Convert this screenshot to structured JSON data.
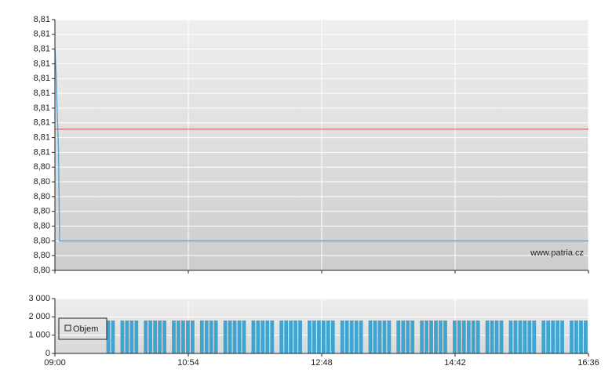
{
  "chart_data": [
    {
      "type": "line",
      "x": [
        "09:00",
        "09:01",
        "09:02",
        "09:03",
        "09:04",
        "16:36"
      ],
      "values": [
        8.8105,
        8.8093,
        8.8074,
        8.8058,
        8.8014,
        8.8014
      ],
      "color": "#5aaad8",
      "reference": {
        "value": 8.8067,
        "color": "#e04040"
      },
      "ylim": [
        8.8,
        8.8119
      ],
      "yticks": [
        {
          "value": 8.8,
          "label": "8,80"
        },
        {
          "value": 8.8007,
          "label": "8,80"
        },
        {
          "value": 8.8014,
          "label": "8,80"
        },
        {
          "value": 8.8021,
          "label": "8,80"
        },
        {
          "value": 8.8028,
          "label": "8,80"
        },
        {
          "value": 8.8035,
          "label": "8,80"
        },
        {
          "value": 8.8042,
          "label": "8,80"
        },
        {
          "value": 8.8049,
          "label": "8,80"
        },
        {
          "value": 8.8056,
          "label": "8,81"
        },
        {
          "value": 8.8063,
          "label": "8,81"
        },
        {
          "value": 8.807,
          "label": "8,81"
        },
        {
          "value": 8.8077,
          "label": "8,81"
        },
        {
          "value": 8.8084,
          "label": "8,81"
        },
        {
          "value": 8.8091,
          "label": "8,81"
        },
        {
          "value": 8.8098,
          "label": "8,81"
        },
        {
          "value": 8.8105,
          "label": "8,81"
        },
        {
          "value": 8.8112,
          "label": "8,81"
        },
        {
          "value": 8.8119,
          "label": "8,81"
        }
      ],
      "watermark": "www.patria.cz",
      "grid": true
    },
    {
      "type": "bar",
      "x": [
        "09:44",
        "09:48",
        "09:52",
        "09:56",
        "10:00",
        "10:04",
        "10:08",
        "10:12",
        "10:16",
        "10:20",
        "10:24",
        "10:28",
        "10:32",
        "10:36",
        "10:40",
        "10:44",
        "10:48",
        "10:52",
        "10:56",
        "11:00",
        "11:04",
        "11:08",
        "11:12",
        "11:16",
        "11:20",
        "11:24",
        "11:28",
        "11:32",
        "11:36",
        "11:40",
        "11:44",
        "11:48",
        "11:52",
        "11:56",
        "12:00",
        "12:04",
        "12:08",
        "12:12",
        "12:16",
        "12:20",
        "12:24",
        "12:28",
        "12:32",
        "12:36",
        "12:40",
        "12:44",
        "12:48",
        "12:52",
        "12:56",
        "13:00",
        "13:04",
        "13:08",
        "13:12",
        "13:16",
        "13:20",
        "13:24",
        "13:28",
        "13:32",
        "13:36",
        "13:40",
        "13:44",
        "13:48",
        "13:52",
        "13:56",
        "14:00",
        "14:04",
        "14:08",
        "14:12",
        "14:16",
        "14:20",
        "14:24",
        "14:28",
        "14:32",
        "14:36",
        "14:40",
        "14:44",
        "14:48",
        "14:52",
        "14:56",
        "15:00",
        "15:04",
        "15:08",
        "15:12",
        "15:16",
        "15:20",
        "15:24",
        "15:28",
        "15:32",
        "15:36",
        "15:40",
        "15:44",
        "15:48",
        "15:52",
        "15:56",
        "16:00",
        "16:04",
        "16:08",
        "16:12",
        "16:16",
        "16:20",
        "16:24",
        "16:28",
        "16:32"
      ],
      "series": [
        {
          "name": "Objem",
          "color": "#3fa4d0",
          "values": [
            1800,
            1800,
            0,
            1800,
            1800,
            1800,
            1800,
            0,
            1800,
            1800,
            1800,
            1800,
            1800,
            0,
            1800,
            1800,
            1800,
            1800,
            1800,
            0,
            1800,
            1800,
            1800,
            1800,
            0,
            1800,
            1800,
            1800,
            1800,
            1800,
            0,
            1800,
            1800,
            1800,
            1800,
            1800,
            0,
            1800,
            1800,
            1800,
            1800,
            1800,
            0,
            1800,
            1800,
            1800,
            1800,
            1800,
            1800,
            0,
            1800,
            1800,
            1800,
            1800,
            1800,
            0,
            1800,
            1800,
            1800,
            1800,
            1800,
            0,
            1800,
            1800,
            1800,
            1800,
            0,
            1800,
            1800,
            1800,
            1800,
            1800,
            1800,
            0,
            1800,
            1800,
            1800,
            1800,
            1800,
            1800,
            0,
            1800,
            1800,
            1800,
            1800,
            0,
            1800,
            1800,
            1800,
            1800,
            1800,
            1800,
            0,
            1800,
            1800,
            1800,
            1800,
            1800,
            0,
            1800,
            1800,
            1800,
            1800
          ]
        }
      ],
      "xlim": [
        "09:00",
        "16:36"
      ],
      "xticks": [
        "09:00",
        "10:54",
        "12:48",
        "14:42",
        "16:36"
      ],
      "ylim": [
        0,
        3000
      ],
      "yticks": [
        0,
        {
          "value": 1000,
          "label": "1 000"
        },
        {
          "value": 2000,
          "label": "2 000"
        },
        {
          "value": 3000,
          "label": "3 000"
        }
      ],
      "legend": "lower left",
      "grid": true
    }
  ]
}
